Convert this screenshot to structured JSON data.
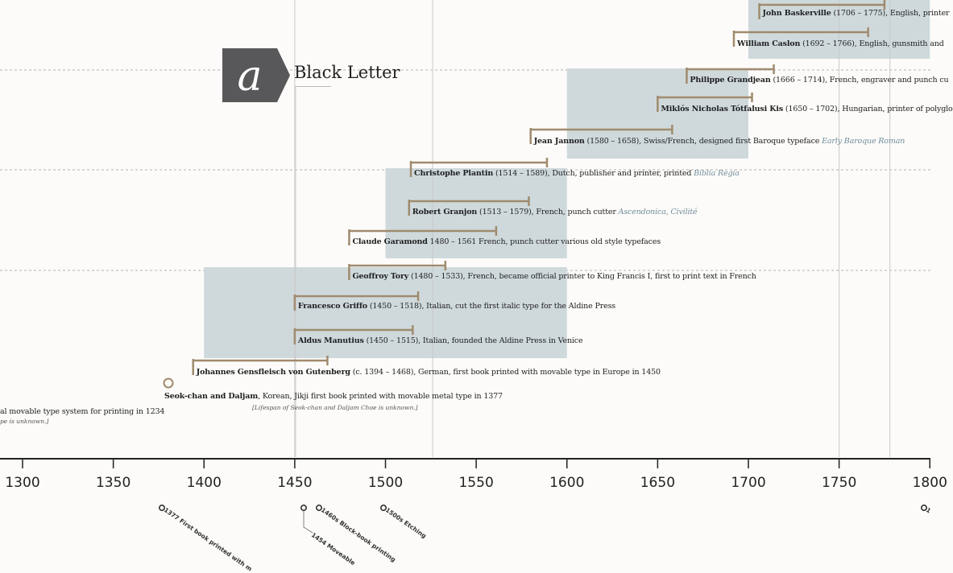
{
  "era": {
    "title": "Black Letter",
    "badge_icon": "blackletter-a-icon",
    "badge_color": "#58585a"
  },
  "colors": {
    "era_box": "#cfd9dc",
    "lifespan_bar": "#a08b6e",
    "axis": "#222222",
    "typeface_link": "#6f8d9c"
  },
  "axis": {
    "min": 1300,
    "max": 1800,
    "ticks": [
      "1300",
      "1350",
      "1400",
      "1450",
      "1500",
      "1550",
      "1600",
      "1650",
      "1700",
      "1750",
      "1800"
    ]
  },
  "era_boxes": [
    {
      "name": "era-box-renaissance",
      "start": 1400,
      "end": 1600
    },
    {
      "name": "era-box-late-renaissance",
      "start": 1500,
      "end": 1600
    },
    {
      "name": "era-box-baroque",
      "start": 1600,
      "end": 1700
    },
    {
      "name": "era-box-transitional",
      "start": 1700,
      "end": 1800
    }
  ],
  "people": [
    {
      "id": "baskerville",
      "name": "John Baskerville",
      "start": 1706,
      "end": 1775,
      "desc": " (1706 – 1775), English, printer",
      "typefaces": []
    },
    {
      "id": "caslon",
      "name": "William Caslon",
      "start": 1692,
      "end": 1766,
      "desc": " (1692 – 1766), English, gunsmith and",
      "typefaces": []
    },
    {
      "id": "grandjean",
      "name": "Philippe Grandjean",
      "start": 1666,
      "end": 1714,
      "desc": " (1666 – 1714), French, engraver and punch cu",
      "typefaces": []
    },
    {
      "id": "kis",
      "name": "Miklós Nicholas Tótfalusi Kis",
      "start": 1650,
      "end": 1702,
      "desc": " (1650 – 1702), Hungarian, printer of polyglo",
      "typefaces": []
    },
    {
      "id": "jannon",
      "name": "Jean Jannon",
      "start": 1580,
      "end": 1658,
      "desc": " (1580 – 1658), Swiss/French, designed first Baroque typeface ",
      "typefaces": [
        "Early Baroque Roman"
      ]
    },
    {
      "id": "plantin",
      "name": "Christophe Plantin",
      "start": 1514,
      "end": 1589,
      "desc": " (1514 – 1589), Dutch, publisher and printer, printed ",
      "typefaces": [
        "Biblia Regia"
      ]
    },
    {
      "id": "granjon",
      "name": "Robert Granjon",
      "start": 1513,
      "end": 1579,
      "desc": " (1513 – 1579), French, punch cutter ",
      "typefaces": [
        "Ascendonica",
        "Civilité"
      ]
    },
    {
      "id": "garamond",
      "name": "Claude Garamond",
      "start": 1480,
      "end": 1561,
      "desc": " 1480 – 1561 French, punch cutter various old style typefaces",
      "typefaces": []
    },
    {
      "id": "tory",
      "name": "Geoffroy Tory",
      "start": 1480,
      "end": 1533,
      "desc": " (1480 – 1533), French, became official printer to King Francis I, first to print text in French",
      "typefaces": []
    },
    {
      "id": "griffo",
      "name": "Francesco Griffo",
      "start": 1450,
      "end": 1518,
      "desc": " (1450 – 1518), Italian, cut the first italic type for the Aldine Press",
      "typefaces": []
    },
    {
      "id": "manutius",
      "name": "Aldus Manutius",
      "start": 1450,
      "end": 1515,
      "desc": " (1450 – 1515), Italian, founded the Aldine Press in Venice",
      "typefaces": []
    },
    {
      "id": "gutenberg",
      "name": "Johannes Gensfleisch von Gutenberg",
      "start": 1394,
      "end": 1468,
      "desc": " (c. 1394 – 1468), German, first book printed with movable type in Europe in 1450",
      "typefaces": []
    },
    {
      "id": "seokchan",
      "name": "Seok-chan and Daljam",
      "start": 1377,
      "end": null,
      "desc": ", Korean, Jikji first book printed with movable metal type in 1377",
      "note": "[Lifespan of Seok-chan and Daljam Choe is unknown.]",
      "typefaces": []
    }
  ],
  "cropped": {
    "line": "al movable type system for printing in 1234",
    "note": "pe is unknown.]"
  },
  "events": [
    {
      "year": 1377,
      "label": "1377 First book printed with m"
    },
    {
      "year": 1454,
      "label": "1454 Moveable"
    },
    {
      "year": 1460,
      "label": "1460s Block-book printing"
    },
    {
      "year": 1500,
      "label": "1500s Etching"
    },
    {
      "year": 1800,
      "label": "1"
    }
  ],
  "vertical_guides": [
    1450,
    1526,
    1750,
    1778
  ]
}
